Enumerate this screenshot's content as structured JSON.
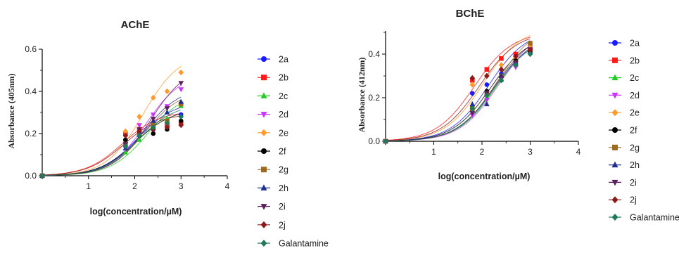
{
  "chart_data": [
    {
      "type": "scatter",
      "title": "AChE",
      "xlabel": "log(concentration/µM)",
      "ylabel": "Absorbance (405nm)",
      "xlim": [
        0,
        4
      ],
      "ylim": [
        0,
        0.6
      ],
      "xticks": [
        "1",
        "2",
        "3",
        "4"
      ],
      "yticks": [
        "0.0",
        "0.2",
        "0.4",
        "0.6"
      ],
      "x": [
        0,
        1.8,
        2.1,
        2.4,
        2.7,
        3.0
      ],
      "grid": false,
      "legend_position": "right",
      "series": [
        {
          "name": "2a",
          "color": "#1a1aff",
          "marker": "circle",
          "values": [
            0,
            0.17,
            0.2,
            0.22,
            0.25,
            0.29
          ]
        },
        {
          "name": "2b",
          "color": "#ff1a1a",
          "marker": "square",
          "values": [
            0,
            0.2,
            0.22,
            0.23,
            0.24,
            0.25
          ]
        },
        {
          "name": "2c",
          "color": "#22cc22",
          "marker": "triangle-up",
          "values": [
            0,
            0.11,
            0.17,
            0.23,
            0.27,
            0.33
          ]
        },
        {
          "name": "2d",
          "color": "#cc33ff",
          "marker": "triangle-down",
          "values": [
            0,
            0.13,
            0.24,
            0.29,
            0.33,
            0.41
          ]
        },
        {
          "name": "2e",
          "color": "#ff9a2e",
          "marker": "diamond",
          "values": [
            0,
            0.21,
            0.28,
            0.37,
            0.4,
            0.49
          ]
        },
        {
          "name": "2f",
          "color": "#000000",
          "marker": "circle",
          "values": [
            0,
            0.17,
            0.19,
            0.2,
            0.22,
            0.26
          ]
        },
        {
          "name": "2g",
          "color": "#9c6a1f",
          "marker": "square",
          "values": [
            0,
            0.15,
            0.2,
            0.24,
            0.26,
            0.34
          ]
        },
        {
          "name": "2h",
          "color": "#1f2f8f",
          "marker": "triangle-up",
          "values": [
            0,
            0.13,
            0.21,
            0.26,
            0.3,
            0.35
          ]
        },
        {
          "name": "2i",
          "color": "#5c1f5c",
          "marker": "triangle-down",
          "values": [
            0,
            0.15,
            0.22,
            0.27,
            0.32,
            0.44
          ]
        },
        {
          "name": "2j",
          "color": "#8b1a1a",
          "marker": "diamond",
          "values": [
            0,
            0.19,
            0.21,
            0.22,
            0.23,
            0.24
          ]
        },
        {
          "name": "Galantamine",
          "color": "#1e7a5a",
          "marker": "diamond",
          "values": [
            0,
            0.14,
            0.19,
            0.23,
            0.25,
            0.28
          ]
        }
      ]
    },
    {
      "type": "scatter",
      "title": "BChE",
      "xlabel": "log(concentration/µM)",
      "ylabel": "Absorbance (412nm)",
      "xlim": [
        0,
        4
      ],
      "ylim": [
        0,
        0.5
      ],
      "xticks": [
        "1",
        "2",
        "3",
        "4"
      ],
      "yticks": [
        "0.0",
        "0.2",
        "0.4"
      ],
      "x": [
        0,
        1.8,
        2.1,
        2.4,
        2.7,
        3.0
      ],
      "grid": false,
      "legend_position": "right",
      "series": [
        {
          "name": "2a",
          "color": "#1a1aff",
          "marker": "circle",
          "values": [
            0,
            0.22,
            0.26,
            0.31,
            0.36,
            0.43
          ]
        },
        {
          "name": "2b",
          "color": "#ff1a1a",
          "marker": "square",
          "values": [
            0,
            0.28,
            0.33,
            0.38,
            0.4,
            0.42
          ]
        },
        {
          "name": "2c",
          "color": "#22cc22",
          "marker": "triangle-up",
          "values": [
            0,
            0.14,
            0.2,
            0.28,
            0.35,
            0.41
          ]
        },
        {
          "name": "2d",
          "color": "#cc33ff",
          "marker": "triangle-down",
          "values": [
            0,
            0.12,
            0.19,
            0.29,
            0.34,
            0.42
          ]
        },
        {
          "name": "2e",
          "color": "#ff9a2e",
          "marker": "diamond",
          "values": [
            0,
            0.26,
            0.3,
            0.35,
            0.38,
            0.44
          ]
        },
        {
          "name": "2f",
          "color": "#000000",
          "marker": "circle",
          "values": [
            0,
            0.16,
            0.23,
            0.3,
            0.37,
            0.41
          ]
        },
        {
          "name": "2g",
          "color": "#9c6a1f",
          "marker": "square",
          "values": [
            0,
            0.15,
            0.22,
            0.3,
            0.36,
            0.45
          ]
        },
        {
          "name": "2h",
          "color": "#1f2f8f",
          "marker": "triangle-up",
          "values": [
            0,
            0.17,
            0.17,
            0.3,
            0.36,
            0.41
          ]
        },
        {
          "name": "2i",
          "color": "#5c1f5c",
          "marker": "triangle-down",
          "values": [
            0,
            0.13,
            0.22,
            0.29,
            0.36,
            0.42
          ]
        },
        {
          "name": "2j",
          "color": "#8b1a1a",
          "marker": "diamond",
          "values": [
            0,
            0.29,
            0.3,
            0.33,
            0.39,
            0.42
          ]
        },
        {
          "name": "Galantamine",
          "color": "#1e7a5a",
          "marker": "diamond",
          "values": [
            0,
            0.15,
            0.21,
            0.28,
            0.35,
            0.4
          ]
        }
      ]
    }
  ]
}
